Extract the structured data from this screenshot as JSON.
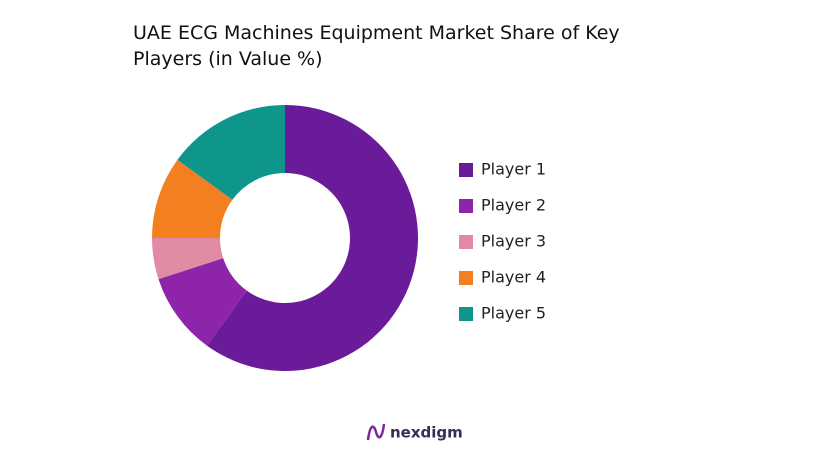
{
  "chart_data": {
    "type": "pie",
    "title": "UAE ECG Machines Equipment Market Share of Key Players (in Value %)",
    "categories": [
      "Player 1",
      "Player 2",
      "Player 3",
      "Player 4",
      "Player 5"
    ],
    "values": [
      60,
      10,
      5,
      10,
      15
    ],
    "colors": [
      "#6a1b9a",
      "#8e24aa",
      "#e08ba3",
      "#f47f20",
      "#0f968a"
    ],
    "donut": true,
    "legend": "right"
  },
  "footer": {
    "brand": "nexdigm"
  }
}
